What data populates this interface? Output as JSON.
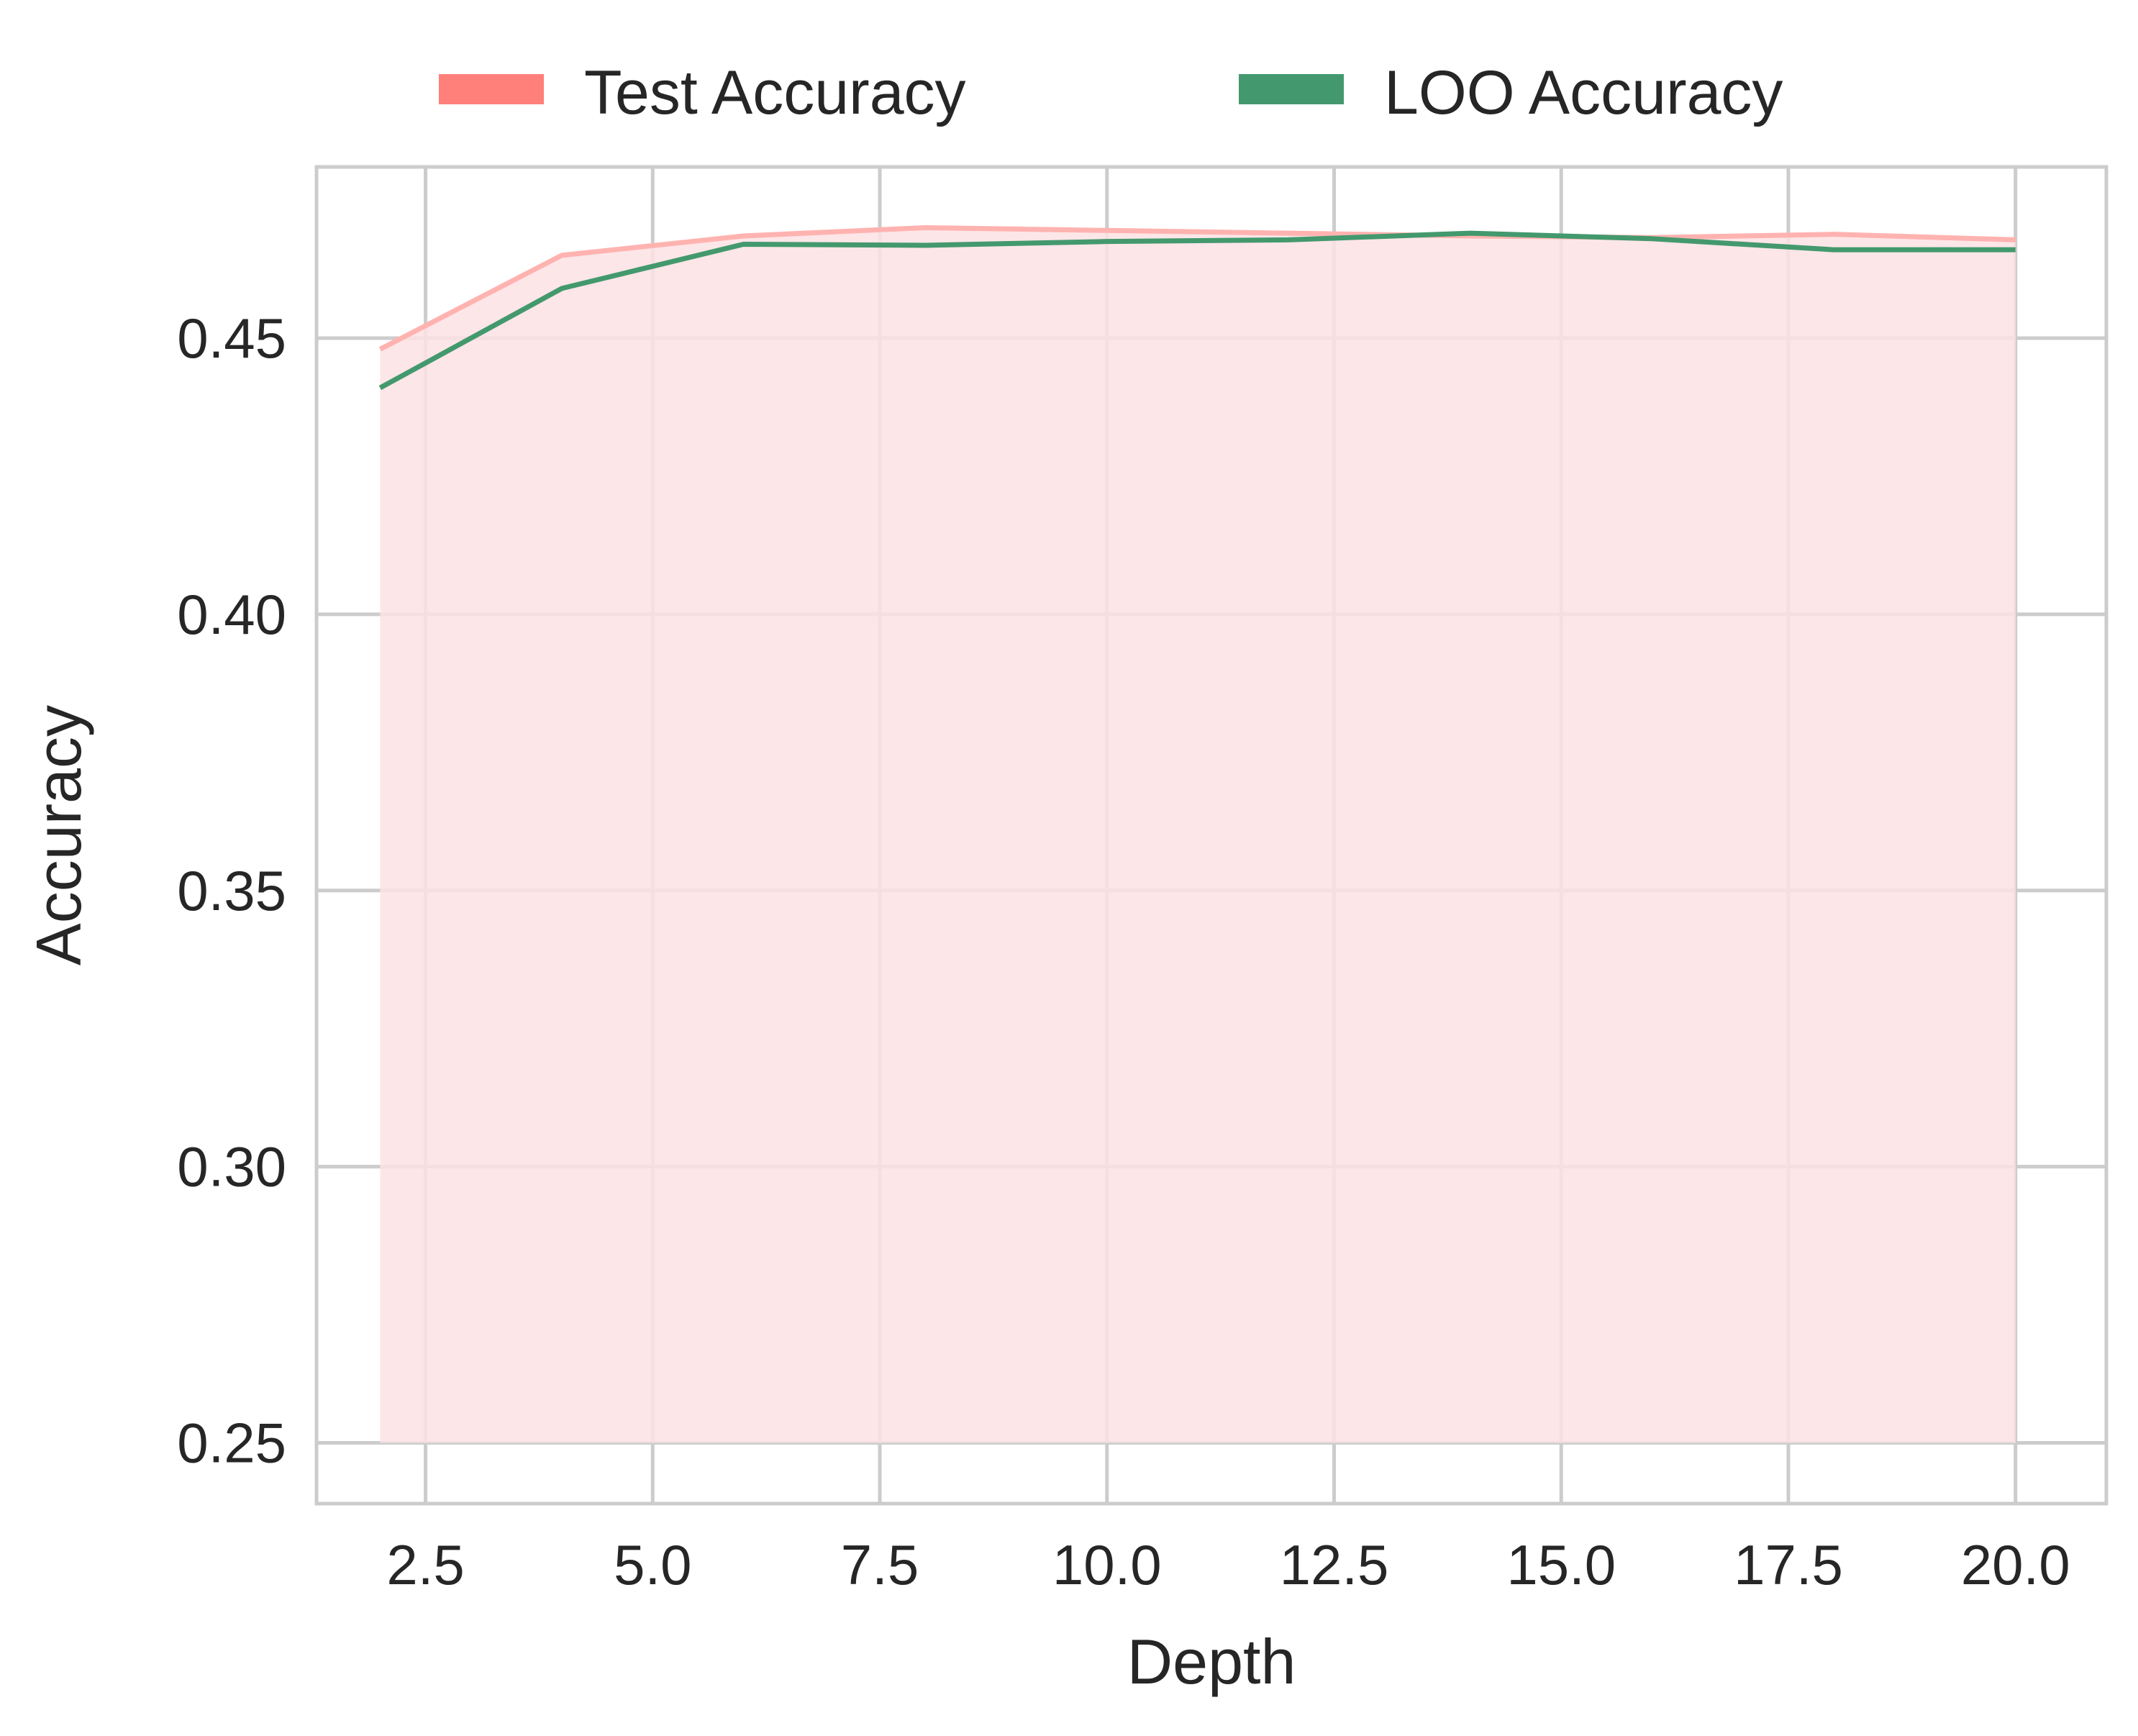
{
  "chart_data": {
    "type": "area",
    "xlabel": "Depth",
    "ylabel": "Accuracy",
    "xlim": [
      1.3,
      21.0
    ],
    "ylim": [
      0.239,
      0.481
    ],
    "x_ticks": [
      2.5,
      5.0,
      7.5,
      10.0,
      12.5,
      15.0,
      17.5,
      20.0
    ],
    "x_tick_labels": [
      "2.5",
      "5.0",
      "7.5",
      "10.0",
      "12.5",
      "15.0",
      "17.5",
      "20.0"
    ],
    "y_ticks": [
      0.25,
      0.3,
      0.35,
      0.4,
      0.45
    ],
    "y_tick_labels": [
      "0.25",
      "0.30",
      "0.35",
      "0.40",
      "0.45"
    ],
    "grid": true,
    "legend_placement": "top-center",
    "fill_baseline": 0.25,
    "x": [
      2,
      4,
      6,
      8,
      10,
      12,
      14,
      16,
      18,
      20
    ],
    "series": [
      {
        "name": "Test Accuracy",
        "values": [
          0.448,
          0.465,
          0.4685,
          0.47,
          0.4695,
          0.469,
          0.4685,
          0.4682,
          0.4688,
          0.4678
        ],
        "color": "#ff7f7a",
        "line_color": "#ffb3b0",
        "fill_color": "#fde2e4",
        "filled": true
      },
      {
        "name": "LOO Accuracy",
        "values": [
          0.441,
          0.459,
          0.467,
          0.4668,
          0.4675,
          0.4678,
          0.469,
          0.468,
          0.466,
          0.466
        ],
        "color": "#43996d",
        "filled": false
      }
    ]
  }
}
